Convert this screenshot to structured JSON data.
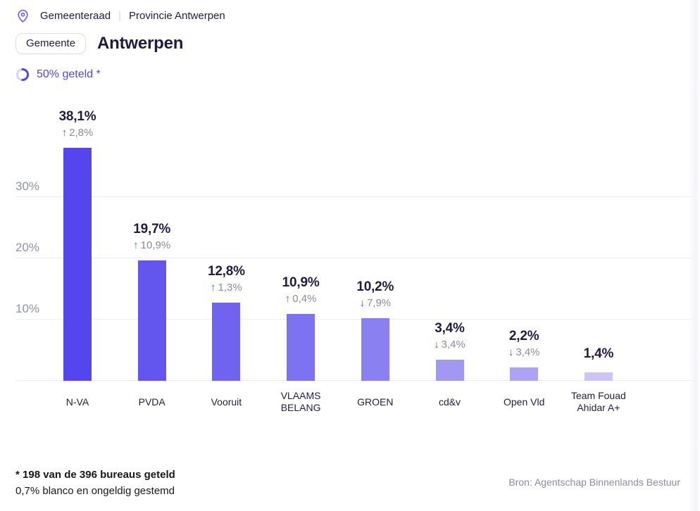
{
  "colors": {
    "accent": "#5445ee",
    "dark_text": "#221a42",
    "gray_text": "#8b8b9c",
    "green_up": "#2f9e44",
    "red_down": "#d63939",
    "gridline": "#ebebf1",
    "tick_text": "#9092a6",
    "source_text": "#8d8aa3"
  },
  "breadcrumb": {
    "items": [
      "Gemeenteraad",
      "Provincie Antwerpen"
    ],
    "separator": "|"
  },
  "header": {
    "badge_label": "Gemeente",
    "title": "Antwerpen"
  },
  "progress": {
    "label": "50% geteld *",
    "percent": 50
  },
  "chart_data": {
    "type": "bar",
    "title": "",
    "xlabel": "",
    "ylabel": "",
    "unit": "%",
    "ylim": [
      0,
      41
    ],
    "grid": true,
    "legend": false,
    "yticks": [
      10,
      20,
      30
    ],
    "ytick_labels": [
      "10%",
      "20%",
      "30%"
    ],
    "categories": [
      "N-VA",
      "PVDA",
      "Vooruit",
      "VLAAMS BELANG",
      "GROEN",
      "cd&v",
      "Open Vld",
      "Team Fouad Ahidar A+"
    ],
    "values": [
      38.1,
      19.7,
      12.8,
      10.9,
      10.2,
      3.4,
      2.2,
      1.4
    ],
    "value_labels": [
      "38,1%",
      "19,7%",
      "12,8%",
      "10,9%",
      "10,2%",
      "3,4%",
      "2,2%",
      "1,4%"
    ],
    "changes": [
      {
        "direction": "up",
        "label": "2,8%"
      },
      {
        "direction": "up",
        "label": "10,9%"
      },
      {
        "direction": "up",
        "label": "1,3%"
      },
      {
        "direction": "up",
        "label": "0,4%"
      },
      {
        "direction": "down",
        "label": "7,9%"
      },
      {
        "direction": "down",
        "label": "3,4%"
      },
      {
        "direction": "down",
        "label": "3,4%"
      },
      null
    ],
    "bar_colors": [
      "#5445ee",
      "#6356ef",
      "#6f63f0",
      "#7d72f1",
      "#8a80f2",
      "#a198f4",
      "#aca3f5",
      "#cdc5f8"
    ]
  },
  "footnotes": {
    "line1": "* 198 van de 396 bureaus geteld",
    "line2": "0,7% blanco en ongeldig gestemd"
  },
  "source": "Bron: Agentschap Binnenlands Bestuur"
}
